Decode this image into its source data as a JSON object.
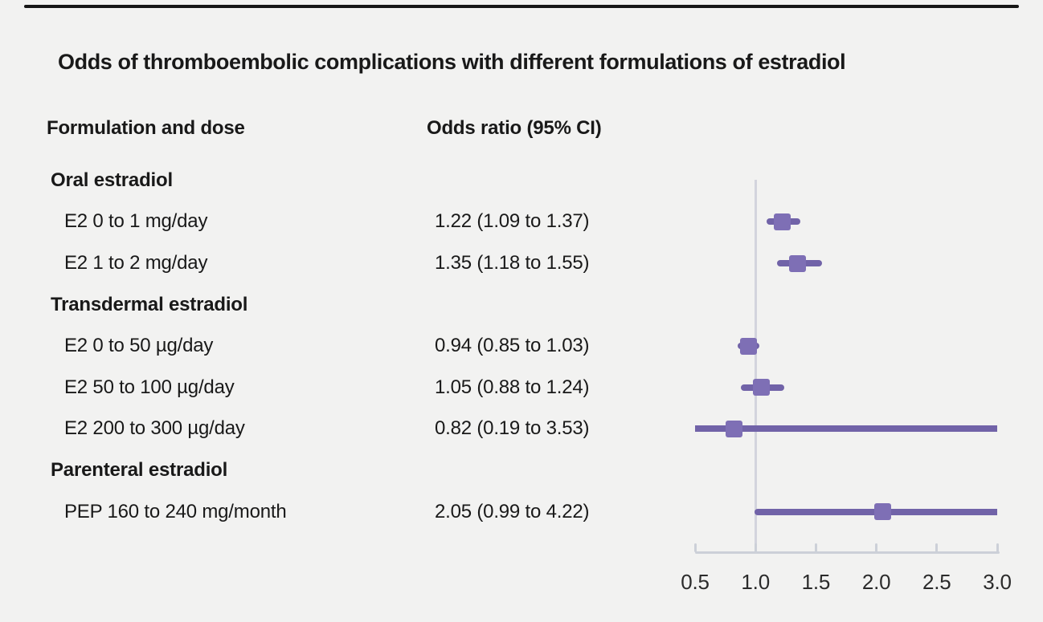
{
  "title": "Odds of thromboembolic complications with different formulations of estradiol",
  "columns": {
    "formulation": "Formulation and dose",
    "odds_ratio": "Odds ratio (95% CI)"
  },
  "colors": {
    "background": "#f2f2f1",
    "text": "#191919",
    "top_rule": "#161616",
    "ci_line": "#7163a8",
    "marker": "#7e6fb5",
    "reference_line": "#d3d4dd",
    "axis": "#ccd0d8",
    "tick_label": "#2b2b2b"
  },
  "chart_data": {
    "type": "forest",
    "orientation": "horizontal",
    "title": "Odds of thromboembolic complications with different formulations of estradiol",
    "xlabel": "",
    "ylabel": "",
    "legend": null,
    "grid": false,
    "axis": {
      "min": 0.5,
      "max": 3.0,
      "reference": 1.0,
      "ticks": [
        0.5,
        1.0,
        1.5,
        2.0,
        2.5,
        3.0
      ],
      "tick_labels": [
        "0.5",
        "1.0",
        "1.5",
        "2.0",
        "2.5",
        "3.0"
      ]
    },
    "rows": [
      {
        "kind": "group",
        "label": "Oral estradiol"
      },
      {
        "kind": "item",
        "label": "E2 0 to 1 mg/day",
        "value_text": "1.22 (1.09 to 1.37)",
        "or": 1.22,
        "ci_low": 1.09,
        "ci_high": 1.37
      },
      {
        "kind": "item",
        "label": "E2 1 to 2 mg/day",
        "value_text": "1.35 (1.18 to 1.55)",
        "or": 1.35,
        "ci_low": 1.18,
        "ci_high": 1.55
      },
      {
        "kind": "group",
        "label": "Transdermal estradiol"
      },
      {
        "kind": "item",
        "label": "E2 0 to 50 µg/day",
        "value_text": "0.94 (0.85 to 1.03)",
        "or": 0.94,
        "ci_low": 0.85,
        "ci_high": 1.03
      },
      {
        "kind": "item",
        "label": "E2 50 to 100 µg/day",
        "value_text": "1.05 (0.88 to 1.24)",
        "or": 1.05,
        "ci_low": 0.88,
        "ci_high": 1.24
      },
      {
        "kind": "item",
        "label": "E2 200 to 300 µg/day",
        "value_text": "0.82 (0.19 to 3.53)",
        "or": 0.82,
        "ci_low": 0.19,
        "ci_high": 3.53
      },
      {
        "kind": "group",
        "label": "Parenteral estradiol"
      },
      {
        "kind": "item",
        "label": "PEP 160 to 240 mg/month",
        "value_text": "2.05 (0.99 to 4.22)",
        "or": 2.05,
        "ci_low": 0.99,
        "ci_high": 4.22
      }
    ]
  }
}
